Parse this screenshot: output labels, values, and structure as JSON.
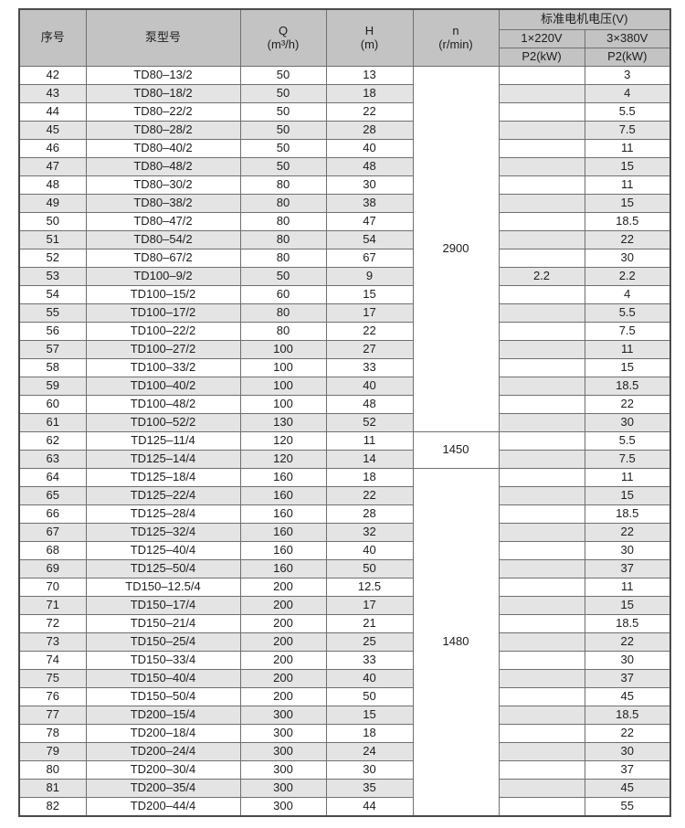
{
  "table": {
    "header": {
      "serial": "序号",
      "model": "泵型号",
      "q_line1": "Q",
      "q_line2": "(m³/h)",
      "h_line1": "H",
      "h_line2": "(m)",
      "n_line1": "n",
      "n_line2": "(r/min)",
      "voltage_group": "标准电机电压(V)",
      "voltage_220": "1×220V",
      "voltage_380": "3×380V",
      "p2_220": "P2(kW)",
      "p2_380": "P2(kW)"
    },
    "colors": {
      "header_bg": "#c3c3c3",
      "shaded_row_bg": "#e4e4e4",
      "row_bg": "#ffffff",
      "inner_border": "#6f6f6f",
      "outer_border": "#4b4b4b",
      "text": "#1d1d1d"
    },
    "speed_spans": [
      {
        "value": "2900",
        "start_index": 0,
        "row_count": 20
      },
      {
        "value": "1450",
        "start_index": 20,
        "row_count": 2
      },
      {
        "value": "1480",
        "start_index": 22,
        "row_count": 19
      }
    ],
    "rows": [
      {
        "no": "42",
        "model": "TD80–13/2",
        "q": "50",
        "h": "13",
        "p220": "",
        "p380": "3"
      },
      {
        "no": "43",
        "model": "TD80–18/2",
        "q": "50",
        "h": "18",
        "p220": "",
        "p380": "4"
      },
      {
        "no": "44",
        "model": "TD80–22/2",
        "q": "50",
        "h": "22",
        "p220": "",
        "p380": "5.5"
      },
      {
        "no": "45",
        "model": "TD80–28/2",
        "q": "50",
        "h": "28",
        "p220": "",
        "p380": "7.5"
      },
      {
        "no": "46",
        "model": "TD80–40/2",
        "q": "50",
        "h": "40",
        "p220": "",
        "p380": "11"
      },
      {
        "no": "47",
        "model": "TD80–48/2",
        "q": "50",
        "h": "48",
        "p220": "",
        "p380": "15"
      },
      {
        "no": "48",
        "model": "TD80–30/2",
        "q": "80",
        "h": "30",
        "p220": "",
        "p380": "11"
      },
      {
        "no": "49",
        "model": "TD80–38/2",
        "q": "80",
        "h": "38",
        "p220": "",
        "p380": "15"
      },
      {
        "no": "50",
        "model": "TD80–47/2",
        "q": "80",
        "h": "47",
        "p220": "",
        "p380": "18.5"
      },
      {
        "no": "51",
        "model": "TD80–54/2",
        "q": "80",
        "h": "54",
        "p220": "",
        "p380": "22"
      },
      {
        "no": "52",
        "model": "TD80–67/2",
        "q": "80",
        "h": "67",
        "p220": "",
        "p380": "30"
      },
      {
        "no": "53",
        "model": "TD100–9/2",
        "q": "50",
        "h": "9",
        "p220": "2.2",
        "p380": "2.2"
      },
      {
        "no": "54",
        "model": "TD100–15/2",
        "q": "60",
        "h": "15",
        "p220": "",
        "p380": "4"
      },
      {
        "no": "55",
        "model": "TD100–17/2",
        "q": "80",
        "h": "17",
        "p220": "",
        "p380": "5.5"
      },
      {
        "no": "56",
        "model": "TD100–22/2",
        "q": "80",
        "h": "22",
        "p220": "",
        "p380": "7.5"
      },
      {
        "no": "57",
        "model": "TD100–27/2",
        "q": "100",
        "h": "27",
        "p220": "",
        "p380": "11"
      },
      {
        "no": "58",
        "model": "TD100–33/2",
        "q": "100",
        "h": "33",
        "p220": "",
        "p380": "15"
      },
      {
        "no": "59",
        "model": "TD100–40/2",
        "q": "100",
        "h": "40",
        "p220": "",
        "p380": "18.5"
      },
      {
        "no": "60",
        "model": "TD100–48/2",
        "q": "100",
        "h": "48",
        "p220": "",
        "p380": "22"
      },
      {
        "no": "61",
        "model": "TD100–52/2",
        "q": "130",
        "h": "52",
        "p220": "",
        "p380": "30"
      },
      {
        "no": "62",
        "model": "TD125–11/4",
        "q": "120",
        "h": "11",
        "p220": "",
        "p380": "5.5"
      },
      {
        "no": "63",
        "model": "TD125–14/4",
        "q": "120",
        "h": "14",
        "p220": "",
        "p380": "7.5"
      },
      {
        "no": "64",
        "model": "TD125–18/4",
        "q": "160",
        "h": "18",
        "p220": "",
        "p380": "11"
      },
      {
        "no": "65",
        "model": "TD125–22/4",
        "q": "160",
        "h": "22",
        "p220": "",
        "p380": "15"
      },
      {
        "no": "66",
        "model": "TD125–28/4",
        "q": "160",
        "h": "28",
        "p220": "",
        "p380": "18.5"
      },
      {
        "no": "67",
        "model": "TD125–32/4",
        "q": "160",
        "h": "32",
        "p220": "",
        "p380": "22"
      },
      {
        "no": "68",
        "model": "TD125–40/4",
        "q": "160",
        "h": "40",
        "p220": "",
        "p380": "30"
      },
      {
        "no": "69",
        "model": "TD125–50/4",
        "q": "160",
        "h": "50",
        "p220": "",
        "p380": "37"
      },
      {
        "no": "70",
        "model": "TD150–12.5/4",
        "q": "200",
        "h": "12.5",
        "p220": "",
        "p380": "11"
      },
      {
        "no": "71",
        "model": "TD150–17/4",
        "q": "200",
        "h": "17",
        "p220": "",
        "p380": "15"
      },
      {
        "no": "72",
        "model": "TD150–21/4",
        "q": "200",
        "h": "21",
        "p220": "",
        "p380": "18.5"
      },
      {
        "no": "73",
        "model": "TD150–25/4",
        "q": "200",
        "h": "25",
        "p220": "",
        "p380": "22"
      },
      {
        "no": "74",
        "model": "TD150–33/4",
        "q": "200",
        "h": "33",
        "p220": "",
        "p380": "30"
      },
      {
        "no": "75",
        "model": "TD150–40/4",
        "q": "200",
        "h": "40",
        "p220": "",
        "p380": "37"
      },
      {
        "no": "76",
        "model": "TD150–50/4",
        "q": "200",
        "h": "50",
        "p220": "",
        "p380": "45"
      },
      {
        "no": "77",
        "model": "TD200–15/4",
        "q": "300",
        "h": "15",
        "p220": "",
        "p380": "18.5"
      },
      {
        "no": "78",
        "model": "TD200–18/4",
        "q": "300",
        "h": "18",
        "p220": "",
        "p380": "22"
      },
      {
        "no": "79",
        "model": "TD200–24/4",
        "q": "300",
        "h": "24",
        "p220": "",
        "p380": "30"
      },
      {
        "no": "80",
        "model": "TD200–30/4",
        "q": "300",
        "h": "30",
        "p220": "",
        "p380": "37"
      },
      {
        "no": "81",
        "model": "TD200–35/4",
        "q": "300",
        "h": "35",
        "p220": "",
        "p380": "45"
      },
      {
        "no": "82",
        "model": "TD200–44/4",
        "q": "300",
        "h": "44",
        "p220": "",
        "p380": "55"
      }
    ]
  }
}
